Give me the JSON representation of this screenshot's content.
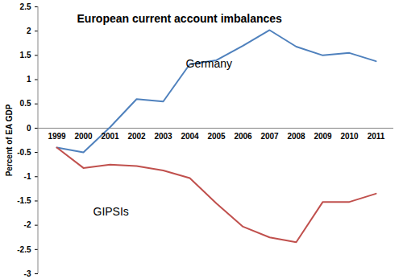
{
  "chart_data": {
    "type": "line",
    "title": "European current account imbalances",
    "y_label": "Percent of EA GDP",
    "categories": [
      "1999",
      "2000",
      "2001",
      "2002",
      "2003",
      "2004",
      "2005",
      "2006",
      "2007",
      "2008",
      "2009",
      "2010",
      "2011"
    ],
    "series": [
      {
        "name": "Germany",
        "color": "#4f81bd",
        "values": [
          -0.4,
          -0.5,
          0.02,
          0.6,
          0.55,
          1.32,
          1.4,
          1.7,
          2.02,
          1.68,
          1.5,
          1.55,
          1.38
        ]
      },
      {
        "name": "GIPSIs",
        "color": "#c0504d",
        "values": [
          -0.4,
          -0.82,
          -0.75,
          -0.78,
          -0.87,
          -1.03,
          -1.55,
          -2.03,
          -2.25,
          -2.35,
          -1.52,
          -1.52,
          -1.35
        ]
      }
    ],
    "ylim": [
      -3,
      2.5
    ],
    "yticks": [
      -3,
      -2.5,
      -2,
      -1.5,
      -1,
      -0.5,
      0,
      0.5,
      1,
      1.5,
      2,
      2.5
    ],
    "grid": false
  }
}
